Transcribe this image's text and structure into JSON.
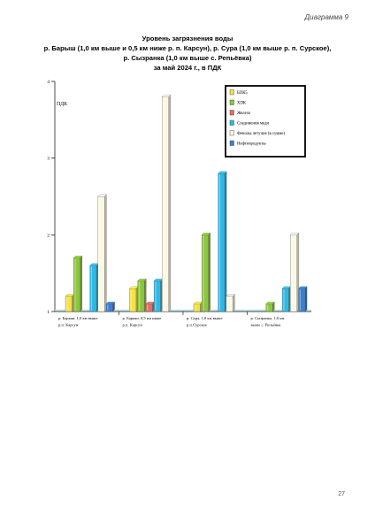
{
  "page": {
    "diagram_label": "Диаграмма 9",
    "title_lines": [
      "Уровень загрязнения воды",
      "р. Барыш (1,0 км выше и 0,5 км ниже р. п. Карсун), р. Сура (1,0 км выше р. п. Сурское),",
      "р. Сызранка (1,0 км выше с. Репьёвка)",
      "за май 2024 г., в ПДК"
    ],
    "page_number": "27"
  },
  "chart_data": {
    "type": "bar",
    "ylabel": "ПДК",
    "ylim": [
      1,
      4
    ],
    "yticks": [
      1,
      2,
      3,
      4
    ],
    "legend_position": "top-right",
    "categories": [
      [
        "р. Барыш, 1,0 км  выше",
        "р.п. Карсун"
      ],
      [
        "р. Барыш, 0,5 км  ниже",
        "р.п. Карсун"
      ],
      [
        "р. Сура, 1,0 км      выше",
        "р.п.Сурское"
      ],
      [
        "р. Сызранка, 1,0 км",
        "выше с. Репьёвка"
      ]
    ],
    "series": [
      {
        "name": "БПК5",
        "color": "#f2e24a",
        "values": [
          1.2,
          1.3,
          1.1,
          null
        ]
      },
      {
        "name": "ХПК",
        "color": "#8dc63f",
        "values": [
          1.7,
          1.4,
          2.0,
          1.1
        ]
      },
      {
        "name": "Железо",
        "color": "#e07060",
        "values": [
          null,
          1.1,
          null,
          null
        ]
      },
      {
        "name": "Соединения меди",
        "color": "#2eb8e6",
        "values": [
          1.6,
          1.4,
          2.8,
          1.3
        ]
      },
      {
        "name": "Фенолы летучие (в сумме)",
        "color": "#fbf8e4",
        "values": [
          2.5,
          3.8,
          1.2,
          2.0
        ]
      },
      {
        "name": "Нефтепродукты",
        "color": "#3a7fd0",
        "values": [
          1.1,
          null,
          null,
          1.3
        ]
      }
    ]
  }
}
